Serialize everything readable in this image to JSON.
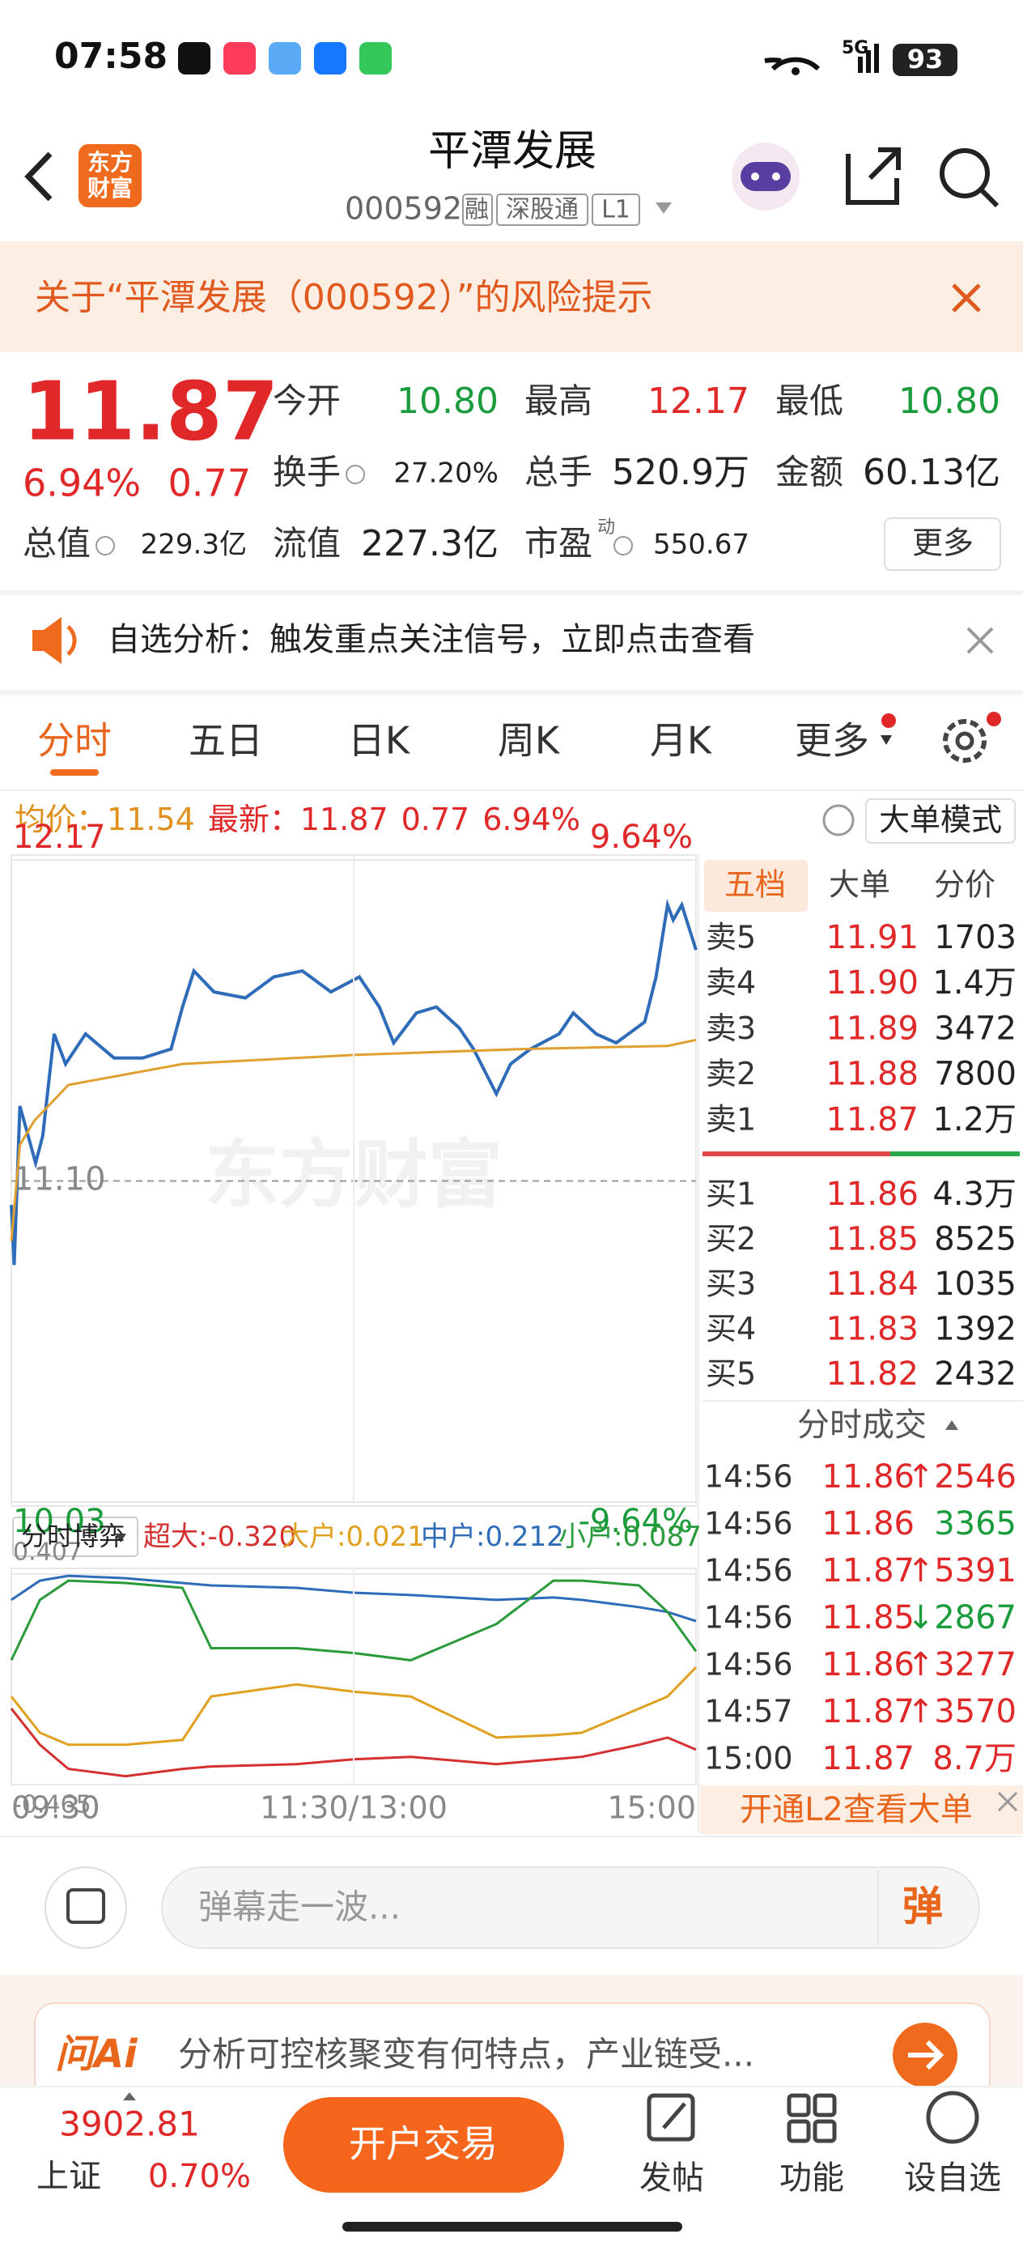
{
  "status_bar": {
    "time": "07:58",
    "network": "5G",
    "battery": "93"
  },
  "header": {
    "logo": [
      "东方",
      "财富"
    ],
    "title": "平潭发展",
    "code": "000592",
    "tags": [
      "融",
      "深股通",
      "L1"
    ]
  },
  "risk_banner": {
    "text": "关于“平潭发展（000592）”的风险提示"
  },
  "quote": {
    "price": "11.87",
    "change_pct": "6.94%",
    "change": "0.77",
    "rows": [
      [
        {
          "label": "今开",
          "value": "10.80",
          "color": "#1a9c3c"
        },
        {
          "label": "最高",
          "value": "12.17",
          "color": "#e02828"
        },
        {
          "label": "最低",
          "value": "10.80",
          "color": "#1a9c3c"
        }
      ],
      [
        {
          "label": "换手",
          "value": "27.20%"
        },
        {
          "label": "总手",
          "value": "520.9万"
        },
        {
          "label": "金额",
          "value": "60.13亿"
        }
      ],
      [
        {
          "label": "总值",
          "value": "229.3亿"
        },
        {
          "label": "流值",
          "value": "227.3亿"
        },
        {
          "label": "市盈",
          "sup": "动",
          "value": "550.67"
        }
      ]
    ],
    "more": "更多"
  },
  "notice": {
    "text": "自选分析：触发重点关注信号，立即点击查看"
  },
  "tabs": [
    "分时",
    "五日",
    "日K",
    "周K",
    "月K",
    "更多"
  ],
  "info_bar": {
    "avg_label": "均价：",
    "avg": "11.54",
    "latest_label": "最新：",
    "latest": "11.87",
    "change": "0.77",
    "change_pct": "6.94%",
    "mode": "大单模式"
  },
  "watermark": "东方财富",
  "chart_data": [
    {
      "type": "line",
      "xlim": [
        0,
        240
      ],
      "xticks": [
        {
          "value": 0,
          "label": "09:30"
        },
        {
          "value": 120,
          "label": "11:30/13:00"
        },
        {
          "value": 240,
          "label": "15:00"
        }
      ],
      "ylim": [
        10.03,
        12.17
      ],
      "yticks": [
        12.17,
        {
          "value": 11.1,
          "label": "11.10"
        },
        10.03
      ],
      "y2lim": [
        -9.64,
        9.64
      ],
      "y2ticks": [
        {
          "value": 9.64,
          "label": "9.64%"
        },
        {
          "value": -9.64,
          "label": "-9.64%"
        }
      ],
      "series": [
        {
          "color": "#2e6bb8",
          "x": [
            0,
            1,
            3,
            8.5,
            11,
            15,
            19,
            26,
            36,
            46,
            56,
            60,
            64,
            71,
            82,
            92,
            102,
            112,
            122,
            129,
            134,
            142,
            149,
            157,
            162,
            170,
            175,
            182,
            192,
            197,
            205,
            212,
            222,
            226,
            230,
            232,
            235,
            240
          ],
          "values": [
            11.02,
            10.82,
            11.35,
            11.16,
            11.25,
            11.59,
            11.49,
            11.59,
            11.51,
            11.51,
            11.54,
            11.68,
            11.8,
            11.73,
            11.71,
            11.78,
            11.8,
            11.73,
            11.78,
            11.68,
            11.56,
            11.66,
            11.68,
            11.61,
            11.54,
            11.39,
            11.49,
            11.54,
            11.59,
            11.66,
            11.59,
            11.56,
            11.63,
            11.78,
            12.02,
            11.97,
            12.02,
            11.87
          ]
        },
        {
          "color": "#e0a030",
          "x": [
            0,
            3,
            8,
            20,
            60,
            120,
            180,
            230,
            240
          ],
          "values": [
            10.9,
            11.22,
            11.3,
            11.42,
            11.49,
            11.52,
            11.54,
            11.55,
            11.57
          ]
        }
      ]
    },
    {
      "type": "line",
      "title": "分时博弈",
      "xlim": [
        0,
        240
      ],
      "ylim": [
        -0.465,
        0.407
      ],
      "yticks": [
        0.407,
        -0.465
      ],
      "x": [
        0,
        10,
        20,
        40,
        60,
        70,
        100,
        120,
        140,
        170,
        190,
        200,
        220,
        230,
        240
      ],
      "series": [
        {
          "name": "超大:",
          "value_label": "-0.320",
          "color": "#d43030",
          "values": [
            -0.15,
            -0.3,
            -0.4,
            -0.43,
            -0.4,
            -0.39,
            -0.38,
            -0.36,
            -0.35,
            -0.38,
            -0.36,
            -0.35,
            -0.3,
            -0.27,
            -0.32
          ]
        },
        {
          "name": "大户:",
          "value_label": "0.021",
          "color": "#e0a020",
          "values": [
            -0.1,
            -0.25,
            -0.3,
            -0.3,
            -0.28,
            -0.1,
            -0.05,
            -0.08,
            -0.1,
            -0.27,
            -0.26,
            -0.25,
            -0.15,
            -0.1,
            0.021
          ]
        },
        {
          "name": "中户:",
          "value_label": "0.212",
          "color": "#2e6bb8",
          "values": [
            0.3,
            0.38,
            0.4,
            0.39,
            0.37,
            0.36,
            0.35,
            0.33,
            0.32,
            0.3,
            0.31,
            0.3,
            0.27,
            0.25,
            0.212
          ]
        },
        {
          "name": "小户:",
          "value_label": "0.087",
          "color": "#2a9a3a",
          "values": [
            0.05,
            0.3,
            0.38,
            0.37,
            0.35,
            0.1,
            0.1,
            0.08,
            0.05,
            0.2,
            0.38,
            0.38,
            0.36,
            0.25,
            0.087
          ]
        }
      ]
    }
  ],
  "order_book": {
    "tabs": [
      "五档",
      "大单",
      "分价"
    ],
    "asks": [
      {
        "label": "卖5",
        "price": "11.91",
        "volume": "1703"
      },
      {
        "label": "卖4",
        "price": "11.90",
        "volume": "1.4万"
      },
      {
        "label": "卖3",
        "price": "11.89",
        "volume": "3472"
      },
      {
        "label": "卖2",
        "price": "11.88",
        "volume": "7800"
      },
      {
        "label": "卖1",
        "price": "11.87",
        "volume": "1.2万"
      }
    ],
    "bids": [
      {
        "label": "买1",
        "price": "11.86",
        "volume": "4.3万"
      },
      {
        "label": "买2",
        "price": "11.85",
        "volume": "8525"
      },
      {
        "label": "买3",
        "price": "11.84",
        "volume": "1035"
      },
      {
        "label": "买4",
        "price": "11.83",
        "volume": "1392"
      },
      {
        "label": "买5",
        "price": "11.82",
        "volume": "2432"
      }
    ]
  },
  "trades": {
    "title": "分时成交",
    "rows": [
      {
        "time": "14:56",
        "price": "11.86",
        "volume": "↑2546",
        "color": "#e02828"
      },
      {
        "time": "14:56",
        "price": "11.86",
        "volume": "3365",
        "color": "#1a9c3c"
      },
      {
        "time": "14:56",
        "price": "11.87",
        "volume": "↑5391",
        "color": "#e02828"
      },
      {
        "time": "14:56",
        "price": "11.85",
        "volume": "↓2867",
        "color": "#1a9c3c"
      },
      {
        "time": "14:56",
        "price": "11.86",
        "volume": "↑3277",
        "color": "#e02828"
      },
      {
        "time": "14:57",
        "price": "11.87",
        "volume": "↑3570",
        "color": "#e02828"
      },
      {
        "time": "15:00",
        "price": "11.87",
        "volume": "8.7万",
        "color": "#e02828"
      }
    ]
  },
  "l2_banner": "开通L2查看大单",
  "comment": {
    "placeholder": "弹幕走一波...",
    "button": "弹"
  },
  "ai_banner": {
    "logo": "问Ai",
    "text": "分析可控核聚变有何特点，产业链受..."
  },
  "bottom_nav": {
    "index_value": "3902.81",
    "index_name": "上证",
    "index_change": "0.70%",
    "trade": "开户交易",
    "items": [
      "发帖",
      "功能",
      "设自选"
    ]
  }
}
